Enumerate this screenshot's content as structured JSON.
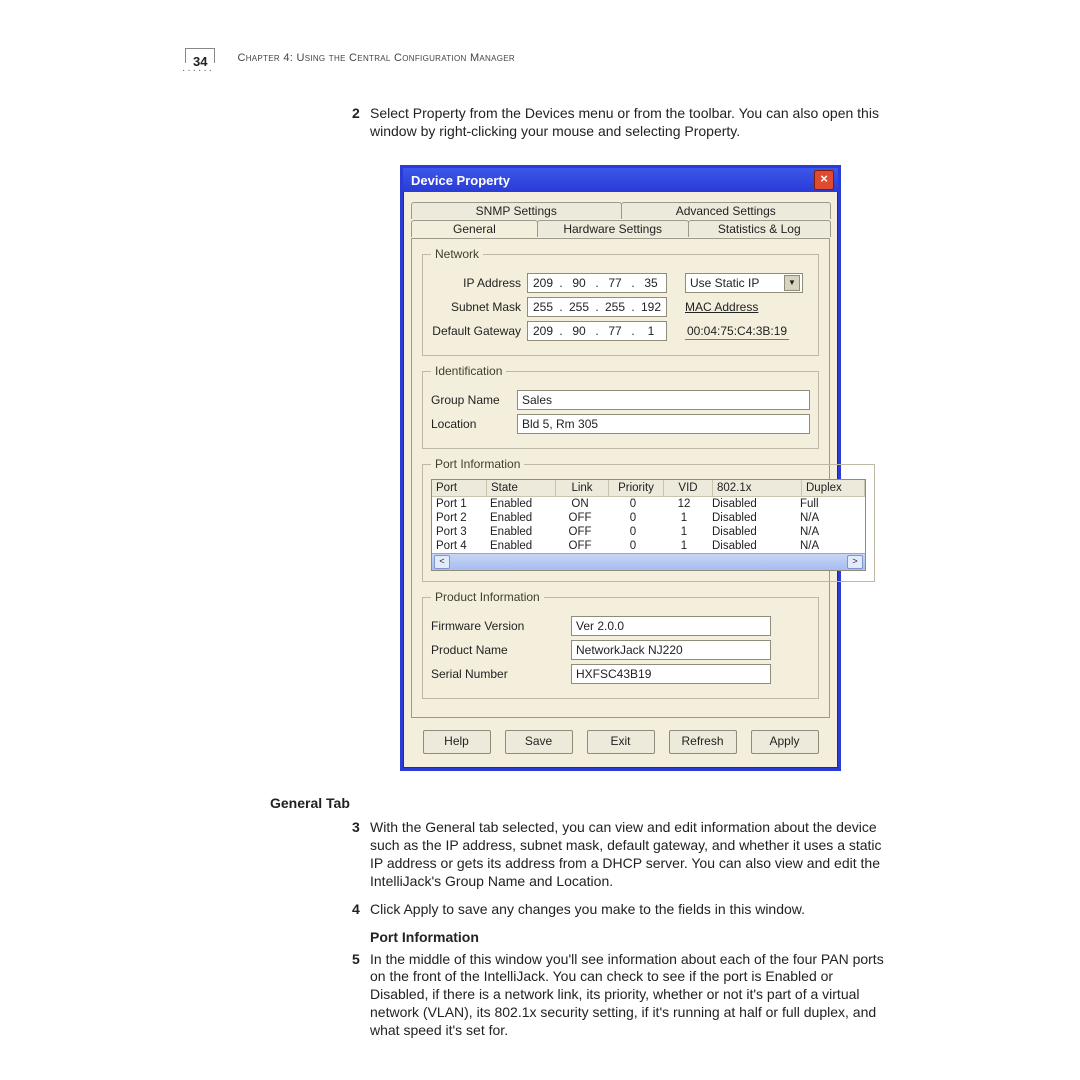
{
  "header": {
    "page_number": "34",
    "chapter_line": "Chapter 4: Using the Central Configuration Manager"
  },
  "step2_text": "Select Property from the Devices menu or from the toolbar. You can also open this window by right-clicking your mouse and selecting Property.",
  "dialog": {
    "title": "Device Property",
    "tabs_back": [
      "SNMP Settings",
      "Advanced Settings"
    ],
    "tabs_front": [
      "General",
      "Hardware Settings",
      "Statistics & Log"
    ],
    "active_tab": "General",
    "network": {
      "legend": "Network",
      "ip_label": "IP Address",
      "ip": [
        "209",
        "90",
        "77",
        "35"
      ],
      "ip_mode_label": "Use Static IP",
      "subnet_label": "Subnet Mask",
      "subnet": [
        "255",
        "255",
        "255",
        "192"
      ],
      "mac_label": "MAC Address",
      "gateway_label": "Default Gateway",
      "gateway": [
        "209",
        "90",
        "77",
        "1"
      ],
      "mac_value": "00:04:75:C4:3B:19"
    },
    "identification": {
      "legend": "Identification",
      "group_label": "Group Name",
      "group_value": "Sales",
      "location_label": "Location",
      "location_value": "Bld 5, Rm 305"
    },
    "port_info": {
      "legend": "Port Information",
      "columns": [
        "Port",
        "State",
        "Link",
        "Priority",
        "VID",
        "802.1x",
        "Duplex"
      ],
      "rows": [
        [
          "Port 1",
          "Enabled",
          "ON",
          "0",
          "12",
          "Disabled",
          "Full"
        ],
        [
          "Port 2",
          "Enabled",
          "OFF",
          "0",
          "1",
          "Disabled",
          "N/A"
        ],
        [
          "Port 3",
          "Enabled",
          "OFF",
          "0",
          "1",
          "Disabled",
          "N/A"
        ],
        [
          "Port 4",
          "Enabled",
          "OFF",
          "0",
          "1",
          "Disabled",
          "N/A"
        ]
      ]
    },
    "product": {
      "legend": "Product Information",
      "firmware_label": "Firmware Version",
      "firmware_value": "Ver 2.0.0",
      "name_label": "Product Name",
      "name_value": "NetworkJack NJ220",
      "serial_label": "Serial Number",
      "serial_value": "HXFSC43B19"
    },
    "buttons": [
      "Help",
      "Save",
      "Exit",
      "Refresh",
      "Apply"
    ],
    "colors": {
      "titlebar": "#2a3bd6",
      "border": "#2a3bd6",
      "panel_bg": "#f3efdc",
      "close_bg": "#e04a2f"
    }
  },
  "general_tab_heading": "General Tab",
  "step3_text": "With the General tab selected, you can view and edit information about the device such as the IP address, subnet mask, default gateway, and whether it uses a static IP address or gets its address from a DHCP server. You can also view and edit the IntelliJack's Group Name and Location.",
  "step4_text": "Click Apply to save any changes you make to the fields in this window.",
  "port_info_heading": "Port Information",
  "step5_text": "In the middle of this window you'll see information about each of the four PAN ports on the front of the IntelliJack. You can check to see if the port is Enabled or Disabled, if there is a network link, its priority, whether or not it's part of a virtual network (VLAN), its 802.1x security setting, if it's running at half or full duplex, and what speed it's set for."
}
